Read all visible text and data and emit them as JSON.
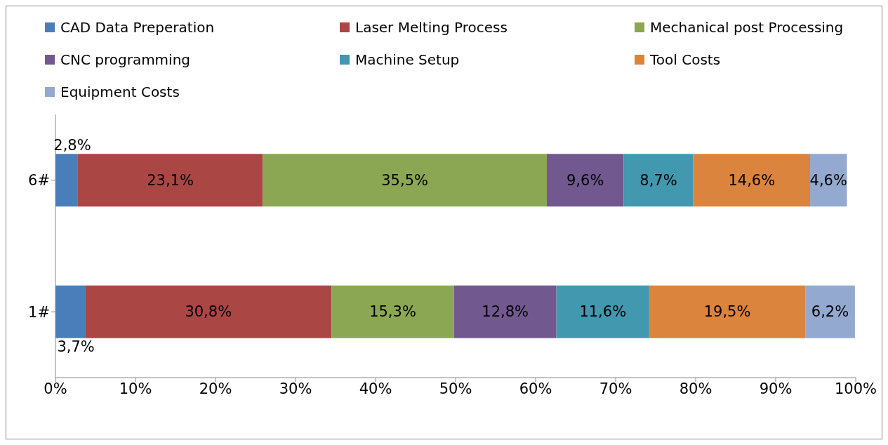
{
  "chart_data": {
    "type": "bar",
    "orientation": "horizontal",
    "stacked": true,
    "categories": [
      "6#",
      "1#"
    ],
    "series": [
      {
        "name": "CAD Data Preperation",
        "color": "#4a7ebb",
        "values": [
          2.8,
          3.7
        ],
        "value_labels": [
          "2,8%",
          "3,7%"
        ]
      },
      {
        "name": "Laser Melting Process",
        "color": "#aa4644",
        "values": [
          23.1,
          30.8
        ],
        "value_labels": [
          "23,1%",
          "30,8%"
        ]
      },
      {
        "name": "Mechanical post Processing",
        "color": "#8ba753",
        "values": [
          35.5,
          15.3
        ],
        "value_labels": [
          "35,5%",
          "15,3%"
        ]
      },
      {
        "name": "CNC programming",
        "color": "#71588f",
        "values": [
          9.6,
          12.8
        ],
        "value_labels": [
          "9,6%",
          "12,8%"
        ]
      },
      {
        "name": "Machine Setup",
        "color": "#4198af",
        "values": [
          8.7,
          11.6
        ],
        "value_labels": [
          "8,7%",
          "11,6%"
        ]
      },
      {
        "name": "Tool Costs",
        "color": "#db843d",
        "values": [
          14.6,
          19.5
        ],
        "value_labels": [
          "14,6%",
          "19,5%"
        ]
      },
      {
        "name": "Equipment Costs",
        "color": "#93a9cf",
        "values": [
          4.6,
          6.2
        ],
        "value_labels": [
          "4,6%",
          "6,2%"
        ]
      }
    ],
    "xlim": [
      0,
      100
    ],
    "xticks": [
      {
        "value": 0,
        "label": "0%"
      },
      {
        "value": 10,
        "label": "10%"
      },
      {
        "value": 20,
        "label": "20%"
      },
      {
        "value": 30,
        "label": "30%"
      },
      {
        "value": 40,
        "label": "40%"
      },
      {
        "value": 50,
        "label": "50%"
      },
      {
        "value": 60,
        "label": "60%"
      },
      {
        "value": 70,
        "label": "70%"
      },
      {
        "value": 80,
        "label": "80%"
      },
      {
        "value": 90,
        "label": "90%"
      },
      {
        "value": 100,
        "label": "100%"
      }
    ],
    "legend": "top"
  }
}
